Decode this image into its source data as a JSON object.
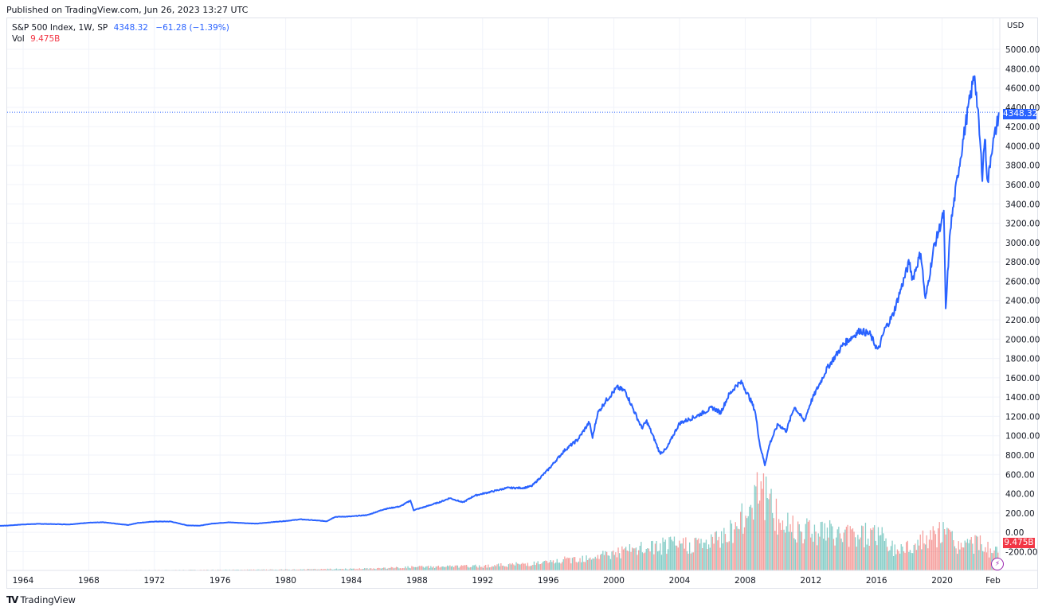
{
  "header": {
    "published": "Published on TradingView.com, Jun 26, 2023 13:27 UTC"
  },
  "legend": {
    "symbol": "S&P 500 Index, 1W, SP",
    "last": "4348.32",
    "change": "−61.28 (−1.39%)",
    "vol_label": "Vol",
    "vol_value": "9.475B"
  },
  "price_scale": {
    "currency": "USD",
    "last_price_tag": "4348.32",
    "volume_tag": "9.475B"
  },
  "footer": {
    "brand": "TradingView",
    "brand_mark": "TV"
  },
  "colors": {
    "line": "#2962ff",
    "vol_up": "#26a69a",
    "vol_down": "#ef5350",
    "grid": "#f0f3fa",
    "price_tag": "#2962ff",
    "vol_tag": "#f23645",
    "bolt": "#9c27b0"
  },
  "chart_data": {
    "type": "line",
    "title": "S&P 500 Index, 1W, SP",
    "xlabel": "",
    "ylabel": "USD",
    "ylim": [
      -300,
      5200
    ],
    "grid": true,
    "legend_position": "top-left",
    "x_ticks": [
      "1964",
      "1968",
      "1972",
      "1976",
      "1980",
      "1984",
      "1988",
      "1992",
      "1996",
      "2000",
      "2004",
      "2008",
      "2012",
      "2016",
      "2020",
      "Feb"
    ],
    "y_ticks": [
      "5000.00",
      "4800.00",
      "4600.00",
      "4400.00",
      "4200.00",
      "4000.00",
      "3800.00",
      "3600.00",
      "3400.00",
      "3200.00",
      "3000.00",
      "2800.00",
      "2600.00",
      "2400.00",
      "2200.00",
      "2000.00",
      "1800.00",
      "1600.00",
      "1400.00",
      "1200.00",
      "1000.00",
      "800.00",
      "600.00",
      "400.00",
      "200.00",
      "0.00",
      "-200.00"
    ],
    "series": [
      {
        "name": "S&P 500 Index",
        "x": [
          1962.0,
          1963.0,
          1964.0,
          1965.0,
          1966.0,
          1966.8,
          1968.0,
          1968.9,
          1970.4,
          1971.0,
          1972.0,
          1973.0,
          1974.0,
          1974.8,
          1975.5,
          1976.5,
          1977.5,
          1978.2,
          1979.0,
          1980.0,
          1980.9,
          1981.5,
          1982.5,
          1983.0,
          1984.0,
          1985.0,
          1986.0,
          1987.0,
          1987.6,
          1987.8,
          1988.5,
          1989.5,
          1990.0,
          1990.8,
          1991.5,
          1992.5,
          1993.5,
          1994.5,
          1995.0,
          1996.0,
          1997.0,
          1997.8,
          1998.5,
          1998.7,
          1999.0,
          1999.5,
          2000.2,
          2000.7,
          2001.3,
          2001.7,
          2002.0,
          2002.5,
          2002.8,
          2003.2,
          2003.6,
          2004.0,
          2005.0,
          2006.0,
          2006.5,
          2007.0,
          2007.5,
          2007.8,
          2008.3,
          2008.6,
          2008.9,
          2009.2,
          2009.5,
          2010.0,
          2010.5,
          2011.0,
          2011.6,
          2012.0,
          2013.0,
          2014.0,
          2015.0,
          2015.6,
          2016.1,
          2016.5,
          2017.0,
          2018.0,
          2018.2,
          2018.7,
          2018.98,
          2019.5,
          2020.1,
          2020.22,
          2020.5,
          2021.0,
          2021.5,
          2021.98,
          2022.2,
          2022.45,
          2022.6,
          2022.78,
          2023.0,
          2023.2,
          2023.48
        ],
        "values": [
          65,
          70,
          82,
          88,
          85,
          82,
          100,
          104,
          76,
          98,
          112,
          112,
          72,
          70,
          90,
          104,
          96,
          90,
          103,
          118,
          135,
          128,
          115,
          160,
          165,
          180,
          240,
          270,
          330,
          230,
          265,
          320,
          355,
          310,
          380,
          420,
          460,
          460,
          480,
          650,
          850,
          960,
          1140,
          980,
          1230,
          1360,
          1500,
          1460,
          1230,
          1080,
          1150,
          950,
          820,
          860,
          1000,
          1130,
          1200,
          1290,
          1240,
          1420,
          1530,
          1550,
          1380,
          1260,
          900,
          700,
          920,
          1120,
          1050,
          1300,
          1150,
          1350,
          1700,
          1950,
          2090,
          2050,
          1880,
          2100,
          2250,
          2800,
          2620,
          2900,
          2400,
          2950,
          3300,
          2300,
          3150,
          3750,
          4300,
          4750,
          4300,
          3700,
          4100,
          3600,
          3950,
          4100,
          4348
        ]
      },
      {
        "name": "Volume",
        "x": [
          1962,
          1970,
          1980,
          1985,
          1988,
          1992,
          1996,
          2000,
          2003,
          2006,
          2008,
          2008.8,
          2009.3,
          2010,
          2012,
          2014,
          2016,
          2017,
          2018,
          2020.2,
          2021,
          2022,
          2023.48
        ],
        "values_billions": [
          0.1,
          0.2,
          0.5,
          1.0,
          2.0,
          2.5,
          4.5,
          10,
          14,
          16,
          30,
          55,
          40,
          28,
          24,
          20,
          22,
          12,
          14,
          22,
          14,
          16,
          9.475
        ]
      }
    ]
  }
}
